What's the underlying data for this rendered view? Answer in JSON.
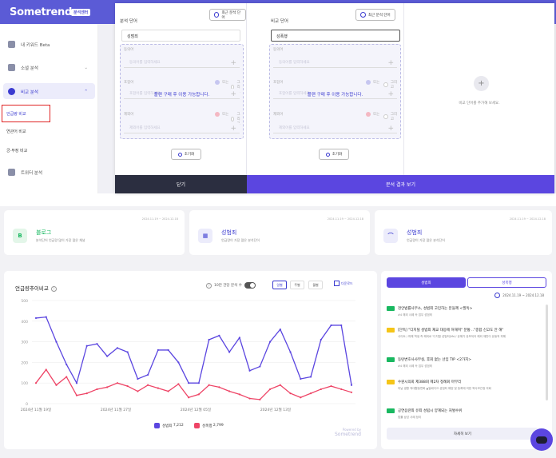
{
  "app": {
    "logo": "Sometrend",
    "badge": "분석센터"
  },
  "sidebar": {
    "items": [
      {
        "label": "내 키워드 Beta",
        "icon": "bookmark-icon"
      },
      {
        "label": "소셜 분석",
        "icon": "chart-icon"
      },
      {
        "label": "비교 분석",
        "icon": "pie-icon"
      }
    ],
    "subitems": [
      "언급량 비교",
      "연관어 비교",
      "긍·부정 비교"
    ],
    "last": "트위터 분석"
  },
  "modal": {
    "col1": {
      "title": "분석 단어",
      "recent": "최근 분석 단어",
      "value": "성범죄"
    },
    "col2": {
      "title": "비교 단어",
      "recent": "최근 분석 단어",
      "value": "성폭행"
    },
    "locked": {
      "syn_label": "동의어",
      "syn_placeholder": "동의어를 입력하세요",
      "inc_label": "포함어",
      "inc_placeholder": "포함어를 입력하세요",
      "exc_label": "제외어",
      "exc_placeholder": "제외어를 입력하세요",
      "or": "또는",
      "and": "그리고",
      "message": "플랜 구매 후 이용 가능합니다."
    },
    "reset": "초기화",
    "add_hint": "비교 단어를 추가해 보세요.",
    "close": "닫기",
    "see_result": "분석 결과 보기"
  },
  "cards": [
    {
      "date": "2024.11.19 ~ 2024.12.18",
      "icon": "B",
      "title": "블로그",
      "subtitle": "분석단어 언급량 많이 가장 많은 채널"
    },
    {
      "date": "2024.11.19 ~ 2024.12.18",
      "icon": "calendar-icon",
      "title": "성범죄",
      "subtitle": "언급량이 가장 많은 분석단어"
    },
    {
      "date": "2024.11.19 ~ 2024.12.18",
      "icon": "trend-icon",
      "title": "성범죄",
      "subtitle": "언급량이 가장 많은 분석단어"
    }
  ],
  "chart_panel": {
    "title": "언급량추이비교",
    "toggle_label": "10만 건당 분석 수",
    "periods": [
      "일별",
      "주별",
      "월별"
    ],
    "download": "다운로드",
    "legend": [
      {
        "name": "성범죄",
        "count": "7,212",
        "color": "#5b46e0"
      },
      {
        "name": "성폭행",
        "count": "2,799",
        "color": "#ee4466"
      }
    ],
    "watermark": [
      "Powered by",
      "Sometrend"
    ]
  },
  "chart_data": {
    "type": "line",
    "ylim": [
      0,
      500
    ],
    "yticks": [
      0,
      100,
      200,
      300,
      400,
      500
    ],
    "xticks": [
      "2024년 11월 19일",
      "2024년 11월 27일",
      "2024년 12월 05일",
      "2024년 12월 13일"
    ],
    "series": [
      {
        "name": "성범죄",
        "color": "#5b46e0",
        "values": [
          415,
          420,
          300,
          190,
          100,
          280,
          290,
          230,
          270,
          250,
          120,
          140,
          260,
          260,
          200,
          100,
          100,
          310,
          330,
          250,
          320,
          160,
          180,
          300,
          360,
          250,
          120,
          130,
          310,
          380,
          380,
          90
        ]
      },
      {
        "name": "성폭행",
        "color": "#ee4466",
        "values": [
          100,
          165,
          90,
          130,
          40,
          50,
          70,
          80,
          100,
          85,
          60,
          90,
          75,
          60,
          95,
          30,
          45,
          90,
          80,
          60,
          45,
          25,
          20,
          70,
          90,
          50,
          30,
          50,
          70,
          85,
          70,
          55
        ]
      }
    ]
  },
  "side": {
    "tabs": [
      "성범죄",
      "성폭행"
    ],
    "date": "2024.11.19 ~ 2024.12.18",
    "news": [
      {
        "badge_color": "#19b860",
        "title": "천안법률사무소, 성범죄 고민하는 분들께 <필독>",
        "sub": "#4 해외 사례 속 업무 성범죄"
      },
      {
        "badge_color": "#f5c518",
        "title": "[단독] \"디지털 성범죄 재교 대응에 허해져\" 분통 ..\"종합 신고도 안 해\"",
        "sub": "사이트 / 피해 학생 측 해외로 '디지털 성범죄(Me)' 유해가 유포되어 해외 재판이 유동적 피해"
      },
      {
        "badge_color": "#19b860",
        "title": "동탄변호사사무실, 후회 없는 선임 TIP <2가지>",
        "sub": "#4 해외 사례 속 업무 성범죄"
      },
      {
        "badge_color": "#f5c518",
        "title": "수원시의회 제388회 제2차 정례회 마무리",
        "sub": "의날 생활 적대활동변화 ▲일베이크 성범죄 해양 및 등록에 의한 복사보관정 의회"
      },
      {
        "badge_color": "#19b860",
        "title": "공연음란죄 유죄 성립시 양계되는 처벌수위",
        "sub": "법률 상담 사례 정리"
      }
    ],
    "more": "자세히 보기"
  }
}
